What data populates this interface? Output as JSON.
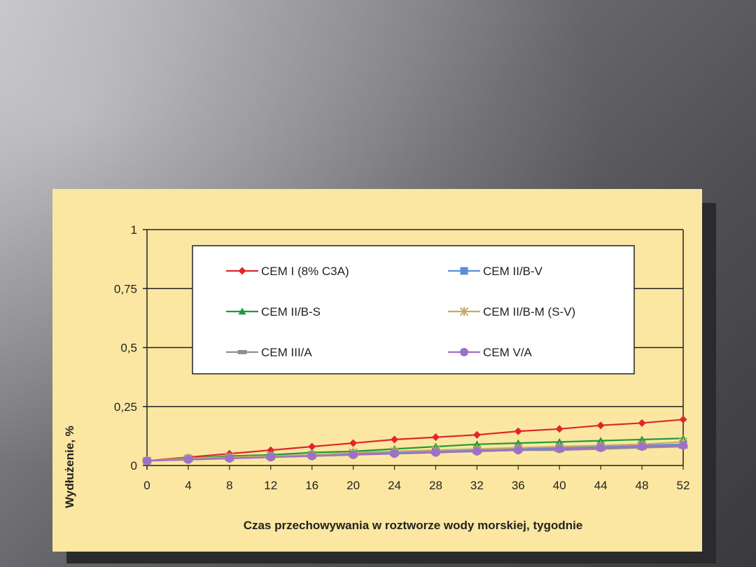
{
  "chart_data": {
    "type": "line",
    "title": "",
    "xlabel": "Czas przechowywania w roztworze wody morskiej, tygodnie",
    "ylabel": "Wydłużenie, %",
    "x": [
      0,
      4,
      8,
      12,
      16,
      20,
      24,
      28,
      32,
      36,
      40,
      44,
      48,
      52
    ],
    "x_tick_labels": [
      "0",
      "4",
      "8",
      "12",
      "16",
      "20",
      "24",
      "28",
      "32",
      "36",
      "40",
      "44",
      "48",
      "52"
    ],
    "y_tick_labels": [
      "0",
      "0,25",
      "0,5",
      "0,75",
      "1"
    ],
    "y_ticks": [
      0,
      0.25,
      0.5,
      0.75,
      1
    ],
    "xlim": [
      0,
      52
    ],
    "ylim": [
      0,
      1
    ],
    "grid": "horizontal",
    "legend_placement": "top-center",
    "series": [
      {
        "name": "CEM I (8% C3A)",
        "color": "#e0262a",
        "marker": "diamond",
        "values": [
          0.02,
          0.035,
          0.05,
          0.065,
          0.08,
          0.095,
          0.11,
          0.12,
          0.13,
          0.145,
          0.155,
          0.17,
          0.18,
          0.195
        ]
      },
      {
        "name": "CEM II/B-V",
        "color": "#5b8fd6",
        "marker": "square",
        "values": [
          0.02,
          0.03,
          0.035,
          0.04,
          0.045,
          0.05,
          0.055,
          0.06,
          0.065,
          0.07,
          0.075,
          0.08,
          0.085,
          0.09
        ]
      },
      {
        "name": "CEM II/B-S",
        "color": "#1f9a3a",
        "marker": "triangle",
        "values": [
          0.02,
          0.03,
          0.04,
          0.045,
          0.055,
          0.06,
          0.07,
          0.08,
          0.09,
          0.095,
          0.1,
          0.105,
          0.11,
          0.115
        ]
      },
      {
        "name": "CEM II/B-M (S-V)",
        "color": "#c8a868",
        "marker": "star",
        "values": [
          0.02,
          0.03,
          0.035,
          0.04,
          0.045,
          0.055,
          0.06,
          0.065,
          0.07,
          0.075,
          0.08,
          0.085,
          0.09,
          0.1
        ]
      },
      {
        "name": "CEM III/A",
        "color": "#8f8f8f",
        "marker": "dash",
        "values": [
          0.02,
          0.025,
          0.03,
          0.035,
          0.04,
          0.045,
          0.05,
          0.055,
          0.06,
          0.065,
          0.065,
          0.07,
          0.075,
          0.08
        ]
      },
      {
        "name": "CEM V/A",
        "color": "#a070c8",
        "marker": "circle",
        "values": [
          0.02,
          0.025,
          0.03,
          0.035,
          0.04,
          0.045,
          0.05,
          0.055,
          0.06,
          0.065,
          0.07,
          0.075,
          0.08,
          0.085
        ]
      }
    ]
  }
}
